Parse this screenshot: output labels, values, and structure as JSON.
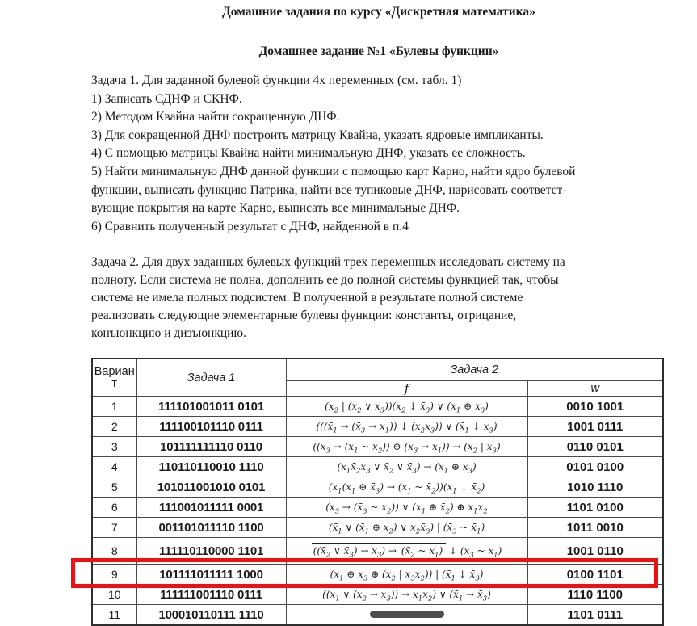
{
  "doc": {
    "title": "Домашние задания по курсу «Дискретная математика»",
    "subtitle": "Домашнее задание №1 «Булевы функции»",
    "task1_text": "Задача 1.   Для заданной булевой функции 4х переменных (см. табл. 1)\n1) Записать СДНФ и СКНФ.\n2) Методом Квайна найти сокращенную ДНФ.\n3) Для сокращенной ДНФ построить матрицу Квайна, указать ядровые импликанты.\n4) С помощью матрицы Квайна найти минимальную ДНФ, указать ее сложность.\n5) Найти минимальную ДНФ данной функции с помощью карт Карно, найти ядро булевой\nфункции, выписать функцию Патрика, найти все тупиковые ДНФ, нарисовать соответст-\nвующие покрытия на карте Карно, выписать все минимальные ДНФ.\n6) Сравнить полученный результат с ДНФ, найденной в п.4",
    "task2_text": "Задача 2.  Для двух заданных булевых функций трех переменных исследовать систему на\nполноту. Если система не полна, дополнить ее до полной системы функцией так, чтобы\nсистема не имела полных подсистем. В полученной в результате полной системе\nреализовать следующие элементарные булевы функции: константы, отрицание,\nконъюнкцию и дизъюнкцию."
  },
  "table": {
    "headers": {
      "variant": "Вариан\nт",
      "task1": "Задача 1",
      "task2": "Задача 2",
      "f": "f",
      "w": "w"
    },
    "rows": [
      {
        "variant": "1",
        "task1": "111101001011 0101",
        "w": "0010 1001",
        "f_html": "(x<sub>2</sub> | (x<sub>2</sub> ∨ x<sub>3</sub>))(x<sub>2</sub> ↓ x̄<sub>3</sub>) ∨ (x<sub>1</sub> ⊕ x<sub>3</sub>)"
      },
      {
        "variant": "2",
        "task1": "111100101110 0111",
        "w": "1001 0111",
        "f_html": "(((x̄<sub>1</sub> → (x̄<sub>3</sub> → x<sub>1</sub>)) ↓ (x<sub>2</sub>x<sub>3</sub>)) ∨ (x̄<sub>1</sub> ↓ x<sub>3</sub>)"
      },
      {
        "variant": "3",
        "task1": "101111111110 0110",
        "w": "0110 0101",
        "f_html": "((x<sub>3</sub> → (x<sub>1</sub> ~ x<sub>2</sub>)) ⊕ (x̄<sub>3</sub> → x̄<sub>1</sub>)) → (x̄<sub>2</sub> | x̄<sub>3</sub>)"
      },
      {
        "variant": "4",
        "task1": "110110110010 1110",
        "w": "0101 0100",
        "f_html": "(x<sub>1</sub>x̄<sub>2</sub>x<sub>3</sub> ∨ x̄<sub>2</sub> ∨ x̄<sub>3</sub>) → (x<sub>1</sub> ⊕ x<sub>3</sub>)"
      },
      {
        "variant": "5",
        "task1": "101011001010 0101",
        "w": "1010 1110",
        "f_html": "(x<sub>1</sub>(x<sub>1</sub> ⊕ x̄<sub>3</sub>) → (x<sub>1</sub> ~ x̄<sub>2</sub>))(x<sub>1</sub> ↓ x̄<sub>2</sub>)"
      },
      {
        "variant": "6",
        "task1": "111001011111 0001",
        "w": "1101 0100",
        "f_html": "(x<sub>3</sub> → (x̄<sub>3</sub> ~ x<sub>2</sub>)) ∨ (x<sub>1</sub> ⊕ x̄<sub>2</sub>) ⊕ x<sub>1</sub>x<sub>2</sub>"
      },
      {
        "variant": "7",
        "task1": "001101011110 1100",
        "w": "1011 0010",
        "f_html": "(x̄<sub>1</sub> ∨ (x̄<sub>1</sub> ⊕ x<sub>2</sub>) ∨ x<sub>2</sub>x̄<sub>3</sub>) | (x̄<sub>3</sub> ~ x̄<sub>1</sub>)"
      },
      {
        "variant": "8",
        "task1": "111110110000 1101",
        "w": "1001 0110",
        "tall": true,
        "f_html": "<span class='ovl'>((x̄<sub>2</sub> ∨ x̄<sub>3</sub>) → x<sub>3</sub>) → <span class='ovl'>(x̄<sub>2</sub> ~ x<sub>1</sub>)</span></span> ↓ (x<sub>3</sub> ~ x<sub>1</sub>)"
      },
      {
        "variant": "9",
        "task1": "101111011111 1000",
        "w": "0100 1101",
        "highlighted": true,
        "f_html": "(x<sub>1</sub> ⊕ x<sub>3</sub> ⊕ (x<sub>2</sub> | x<sub>3</sub>x<sub>2</sub>)) | (x̄<sub>1</sub> ↓ x̄<sub>3</sub>)"
      },
      {
        "variant": "10",
        "task1": "111111001110 0111",
        "w": "1110 1100",
        "f_html": "((x<sub>1</sub> ∨ (x<sub>2</sub> → x<sub>3</sub>)) → x<sub>1</sub>x<sub>2</sub>) ∨ (x̄<sub>1</sub> → x̄<sub>3</sub>)"
      },
      {
        "variant": "11",
        "task1": "100010110111 1110",
        "w": "1101 0111",
        "clipped": true,
        "f_html": "<span class='blob'></span>"
      }
    ]
  },
  "highlight": {
    "color": "#ef1111",
    "highlighted_row": "9"
  }
}
